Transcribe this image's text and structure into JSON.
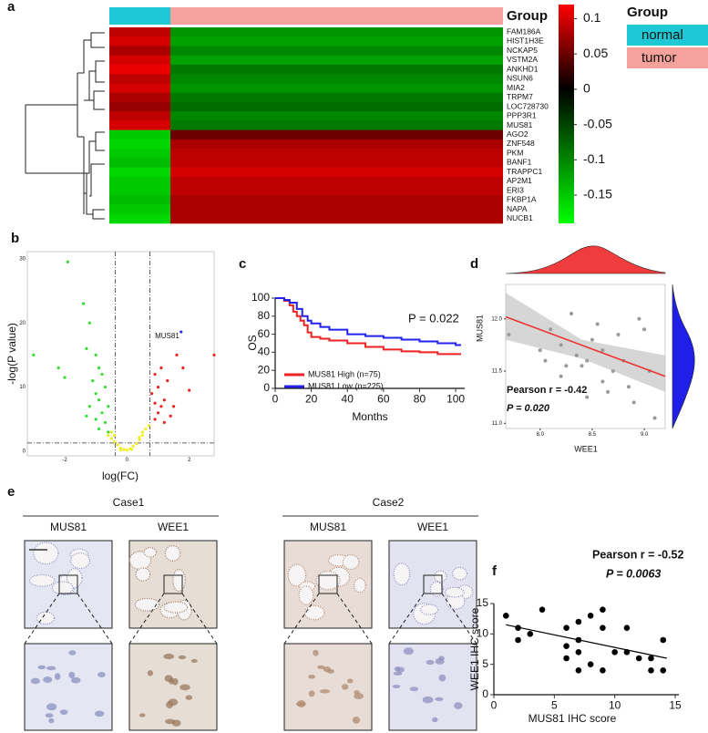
{
  "chart_data": [
    {
      "type": "heatmap",
      "panel_label": "a",
      "group_label": "Group",
      "groups": [
        {
          "name": "normal",
          "color": "#1ec8d4"
        },
        {
          "name": "tumor",
          "color": "#f4a29b"
        }
      ],
      "genes": [
        "FAM186A",
        "HIST1H3E",
        "NCKAP5",
        "VSTM2A",
        "ANKHD1",
        "NSUN6",
        "MIA2",
        "TRPM7",
        "LOC728730",
        "PPP3R1",
        "MUS81",
        "AGO2",
        "ZNF548",
        "PKM",
        "BANF1",
        "TRAPPC1",
        "AP2M1",
        "ERI3",
        "FKBP1A",
        "NAPA",
        "NUCB1"
      ],
      "values": [
        [
          0.09,
          -0.11
        ],
        [
          0.1,
          -0.12
        ],
        [
          0.08,
          -0.1
        ],
        [
          0.1,
          -0.12
        ],
        [
          0.11,
          -0.09
        ],
        [
          0.09,
          -0.1
        ],
        [
          0.1,
          -0.11
        ],
        [
          0.08,
          -0.09
        ],
        [
          0.07,
          -0.08
        ],
        [
          0.09,
          -0.1
        ],
        [
          0.1,
          -0.09
        ],
        [
          -0.15,
          0.05
        ],
        [
          -0.16,
          0.08
        ],
        [
          -0.15,
          0.09
        ],
        [
          -0.14,
          0.09
        ],
        [
          -0.16,
          0.1
        ],
        [
          -0.15,
          0.09
        ],
        [
          -0.15,
          0.09
        ],
        [
          -0.14,
          0.08
        ],
        [
          -0.15,
          0.08
        ],
        [
          -0.16,
          0.08
        ]
      ],
      "colorscale": [
        "#00ff00",
        "#000000",
        "#ff0000"
      ],
      "clim": [
        -0.19,
        0.12
      ],
      "colorbar_ticks": [
        0.1,
        0.05,
        0,
        -0.05,
        -0.1,
        -0.15
      ]
    },
    {
      "type": "volcano",
      "panel_label": "b",
      "xlabel": "log(FC)",
      "ylabel": "-log(P value)",
      "xlim": [
        -3.2,
        2.8
      ],
      "ylim": [
        -0.7,
        31.1
      ],
      "xticks": [
        -2,
        0,
        2
      ],
      "yticks": [
        0,
        10,
        20,
        30
      ],
      "thresholds": {
        "x": [
          -0.38,
          0.74
        ],
        "y": 1.3
      },
      "annotation": "MUS81",
      "series": [
        {
          "color": "#33dd33",
          "x": [
            -3.0,
            -1.9,
            -2.2,
            -2.0,
            -1.4,
            -1.2,
            -1.3,
            -1.0,
            -0.9,
            -0.8,
            -1.1,
            -0.7,
            -1.0,
            -0.9,
            -1.2,
            -0.8,
            -1.0,
            -0.7,
            -0.9,
            -0.6,
            -1.3,
            -0.6
          ],
          "values": [
            15,
            29.5,
            13,
            11.5,
            23,
            20,
            16,
            15,
            13,
            12,
            11,
            10,
            9,
            8,
            7,
            6,
            5,
            4.5,
            3.5,
            7,
            5.5,
            3
          ]
        },
        {
          "color": "#eeee22",
          "x": [
            -0.6,
            -0.5,
            -0.4,
            -0.3,
            -0.2,
            -0.1,
            0,
            0.1,
            0.2,
            0.3,
            0.4,
            0.5,
            0.6,
            0.5,
            0.4,
            -0.5,
            -0.4,
            0.7,
            -0.2,
            0.15
          ],
          "values": [
            2.5,
            2,
            1.5,
            1,
            0.5,
            0.3,
            0.2,
            0.4,
            0.8,
            1.2,
            1.8,
            2.5,
            3.5,
            3,
            2.2,
            3,
            2.5,
            4,
            0.2,
            0.3
          ]
        },
        {
          "color": "#ee2222",
          "x": [
            0.9,
            1.0,
            1.1,
            1.2,
            0.8,
            1.0,
            1.3,
            0.9,
            1.1,
            1.4,
            1.2,
            1.6,
            2.0,
            2.8,
            1.8,
            1.5,
            0.9
          ],
          "values": [
            5,
            6,
            7,
            8,
            9,
            10,
            11,
            12,
            13,
            5.5,
            4.5,
            15,
            9.5,
            15,
            13,
            7,
            7.5
          ]
        },
        {
          "color": "#2233dd",
          "x": [
            1.74
          ],
          "values": [
            18.6
          ]
        }
      ]
    },
    {
      "type": "line",
      "panel_label": "c",
      "xlabel": "Months",
      "ylabel": "OS",
      "annotation": "P = 0.022",
      "xlim": [
        0,
        105
      ],
      "ylim": [
        0,
        100
      ],
      "xticks": [
        0,
        20,
        40,
        60,
        80,
        100
      ],
      "yticks": [
        0,
        20,
        40,
        60,
        80,
        100
      ],
      "series": [
        {
          "name": "MUS81 High (n=75)",
          "color": "#ee2222",
          "x": [
            0,
            5,
            8,
            10,
            12,
            14,
            16,
            18,
            20,
            25,
            30,
            40,
            50,
            60,
            70,
            80,
            90,
            100,
            103
          ],
          "values": [
            100,
            97,
            92,
            85,
            80,
            75,
            70,
            62,
            57,
            55,
            53,
            50,
            46,
            43,
            41,
            40,
            38,
            38,
            38
          ]
        },
        {
          "name": "MUS81 Low (n=225)",
          "color": "#2222ee",
          "x": [
            0,
            5,
            8,
            12,
            15,
            18,
            20,
            25,
            30,
            40,
            50,
            60,
            70,
            80,
            90,
            100,
            103
          ],
          "values": [
            100,
            98,
            95,
            88,
            80,
            75,
            72,
            68,
            65,
            60,
            58,
            56,
            54,
            52,
            50,
            48,
            48
          ]
        }
      ]
    },
    {
      "type": "scatter",
      "panel_label": "d",
      "xlabel": "WEE1",
      "ylabel": "MUS81",
      "annotations": [
        "Pearson r = -0.42",
        "P = 0.020"
      ],
      "xlim": [
        7.67,
        9.2
      ],
      "ylim": [
        10.95,
        12.33
      ],
      "xticks": [
        {
          "value": 8,
          "label": "8.0"
        },
        8.5,
        {
          "value": 9,
          "label": "9.0"
        }
      ],
      "yticks": [
        {
          "value": 11,
          "label": "11.0"
        },
        11.5,
        {
          "value": 12,
          "label": "12.0"
        }
      ],
      "color": "#999999",
      "fit_color": "#ee3333",
      "x": [
        7.7,
        8.0,
        8.05,
        8.1,
        8.2,
        8.2,
        8.3,
        8.35,
        8.4,
        8.45,
        8.5,
        8.55,
        8.6,
        8.6,
        8.65,
        8.7,
        8.75,
        8.8,
        8.85,
        8.9,
        8.95,
        9.0,
        9.05,
        9.1,
        8.45,
        8.25
      ],
      "values": [
        11.85,
        11.7,
        11.6,
        11.9,
        11.75,
        11.45,
        12.05,
        11.65,
        11.55,
        11.6,
        11.8,
        11.95,
        11.7,
        11.4,
        11.3,
        11.5,
        11.85,
        11.6,
        11.35,
        11.2,
        12.0,
        11.9,
        11.5,
        11.05,
        11.25,
        11.55
      ],
      "fit": {
        "x": [
          7.67,
          9.2
        ],
        "y": [
          12.02,
          11.45
        ]
      },
      "band": {
        "x": [
          7.67,
          8.4,
          9.2
        ],
        "lower": [
          11.8,
          11.62,
          11.3
        ],
        "upper": [
          12.25,
          11.8,
          11.65
        ]
      }
    },
    {
      "type": "images",
      "panel_label": "e",
      "cases": [
        {
          "name": "Case1",
          "stains": [
            "MUS81",
            "WEE1"
          ]
        },
        {
          "name": "Case2",
          "stains": [
            "MUS81",
            "WEE1"
          ]
        }
      ]
    },
    {
      "type": "scatter",
      "panel_label": "f",
      "xlabel": "MUS81 IHC score",
      "ylabel": "WEE1 IHC score",
      "annotations": [
        "Pearson r = -0.52",
        "P = 0.0063"
      ],
      "xlim": [
        0,
        15.3
      ],
      "ylim": [
        0,
        15
      ],
      "xticks": [
        0,
        5,
        10,
        15
      ],
      "yticks": [
        0,
        5,
        10,
        15
      ],
      "color": "#000000",
      "fit_color": "#000000",
      "x": [
        1,
        2,
        2,
        3,
        4,
        6,
        6,
        6,
        7,
        7,
        7,
        7,
        8,
        8,
        9,
        9,
        9,
        10,
        11,
        11,
        12,
        13,
        13,
        14,
        14
      ],
      "values": [
        13,
        11,
        9,
        10,
        14,
        11,
        8,
        6,
        12,
        9,
        7,
        4,
        13,
        5,
        14,
        11,
        4,
        7,
        11,
        7,
        6,
        6,
        4,
        9,
        4
      ],
      "fit": {
        "x": [
          1,
          14.3
        ],
        "y": [
          11.5,
          6
        ]
      }
    }
  ]
}
